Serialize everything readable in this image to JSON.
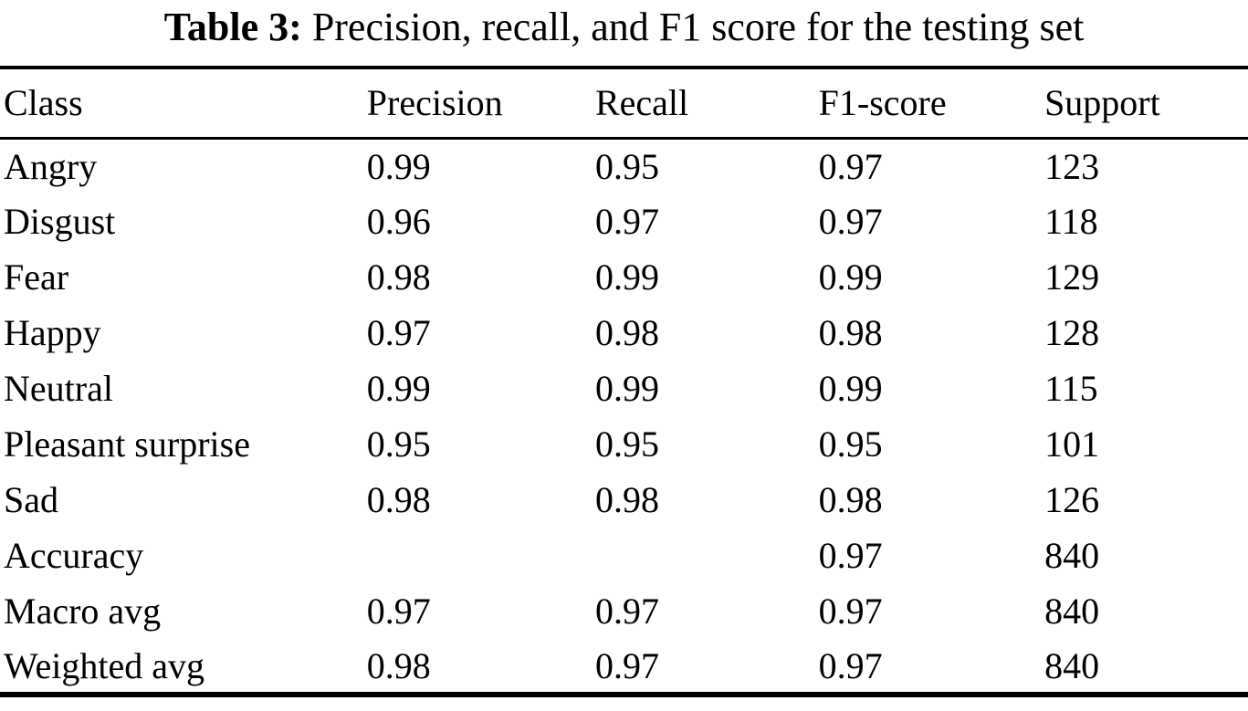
{
  "caption": {
    "label": "Table 3:",
    "text": " Precision, recall, and F1 score for the testing set"
  },
  "table": {
    "headers": [
      "Class",
      "Precision",
      "Recall",
      "F1-score",
      "Support"
    ],
    "rows": [
      [
        "Angry",
        "0.99",
        "0.95",
        "0.97",
        "123"
      ],
      [
        "Disgust",
        "0.96",
        "0.97",
        "0.97",
        "118"
      ],
      [
        "Fear",
        "0.98",
        "0.99",
        "0.99",
        "129"
      ],
      [
        "Happy",
        "0.97",
        "0.98",
        "0.98",
        "128"
      ],
      [
        "Neutral",
        "0.99",
        "0.99",
        "0.99",
        "115"
      ],
      [
        "Pleasant surprise",
        "0.95",
        "0.95",
        "0.95",
        "101"
      ],
      [
        "Sad",
        "0.98",
        "0.98",
        "0.98",
        "126"
      ],
      [
        "Accuracy",
        "",
        "",
        "0.97",
        "840"
      ],
      [
        "Macro avg",
        "0.97",
        "0.97",
        "0.97",
        "840"
      ],
      [
        "Weighted avg",
        "0.98",
        "0.97",
        "0.97",
        "840"
      ]
    ]
  }
}
